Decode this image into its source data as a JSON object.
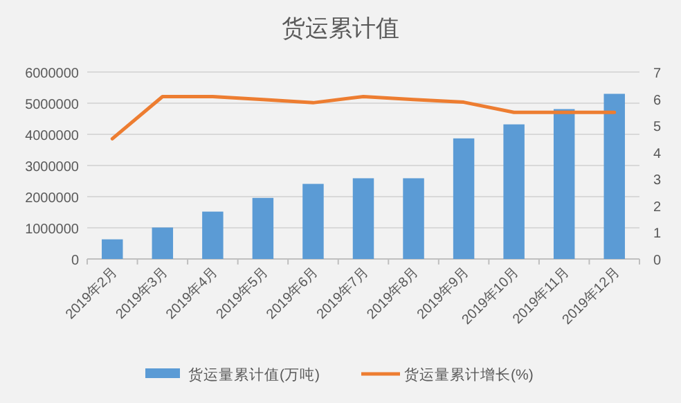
{
  "chart_data": {
    "type": "bar",
    "title": "货运累计值",
    "categories": [
      "2019年2月",
      "2019年3月",
      "2019年4月",
      "2019年5月",
      "2019年6月",
      "2019年7月",
      "2019年8月",
      "2019年9月",
      "2019年10月",
      "2019年11月",
      "2019年12月"
    ],
    "series": [
      {
        "name": "货运量累计值(万吨)",
        "color": "#5b9bd5",
        "values": [
          630000,
          1010000,
          1520000,
          1960000,
          2410000,
          2590000,
          2590000,
          3870000,
          4320000,
          4810000,
          5300000
        ]
      },
      {
        "name": "货运量累计增长(%)",
        "type": "line",
        "axis": "y2",
        "color": "#ed7d31",
        "values": [
          4.5,
          6.08,
          6.08,
          5.97,
          5.85,
          6.08,
          5.97,
          5.87,
          5.49,
          5.49,
          5.49
        ]
      }
    ],
    "ylim": [
      0,
      6000000
    ],
    "yticks": [
      0,
      1000000,
      2000000,
      3000000,
      4000000,
      5000000,
      6000000
    ],
    "y2lim": [
      0,
      7
    ],
    "y2ticks": [
      0,
      1,
      2,
      3,
      4,
      5,
      6,
      7
    ],
    "grid": "y",
    "legend": "bottom"
  }
}
